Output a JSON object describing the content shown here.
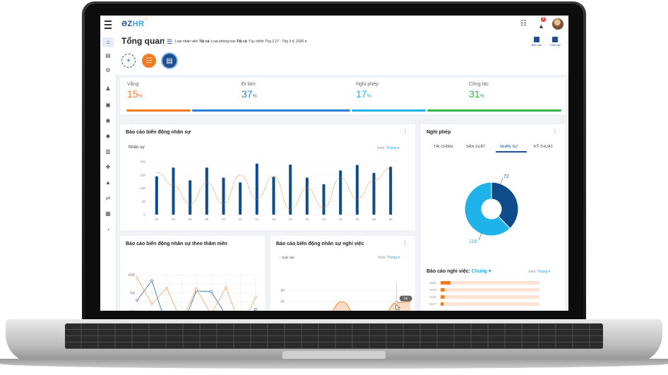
{
  "app": {
    "logo_main": "ƏZ",
    "logo_accent": "HR",
    "logo_spark": "⁘"
  },
  "header": {
    "title": "Tổng quan",
    "filter_prefix": "Loại nhân viên ",
    "filter_emp_value": "Tất cả",
    "filter_mid": " ;Loại phòng ban ",
    "filter_dept_value": "Tất cả",
    "filter_suffix": " ;Tùy chỉnh  Thg 2 27 - Thg 3 4, 2020",
    "report_label": "Báo cáo",
    "settings_label": "Thiết lập"
  },
  "topbar": {
    "notification_count": "5"
  },
  "stats": [
    {
      "label": "Vắng",
      "value": "15",
      "unit": "%",
      "color": "#f37b23"
    },
    {
      "label": "Đi làm",
      "value": "37",
      "unit": "%",
      "color": "#2f7fd6"
    },
    {
      "label": "Nghỉ phép",
      "value": "17",
      "unit": "%",
      "color": "#1fb3ea"
    },
    {
      "label": "Công tác",
      "value": "31",
      "unit": "%",
      "color": "#33b24a"
    }
  ],
  "hr_change": {
    "title": "Báo cáo biến động nhân sự",
    "subtitle": "Nhân sự",
    "view_prefix": "Xem:",
    "view_value": "Tháng",
    "chart_data": {
      "type": "bar",
      "categories": [
        "02",
        "04",
        "06",
        "08",
        "10",
        "12",
        "14",
        "16",
        "18",
        "20",
        "22",
        "24",
        "26",
        "28",
        "30"
      ],
      "values": [
        145,
        178,
        130,
        178,
        140,
        122,
        193,
        143,
        189,
        140,
        115,
        167,
        188,
        158,
        181
      ],
      "line_values": [
        160,
        110,
        40,
        120,
        40,
        150,
        60,
        145,
        20,
        100,
        25,
        140,
        60,
        130,
        175
      ],
      "ylim": [
        0,
        200
      ],
      "yticks": [
        "0",
        "50",
        "100",
        "150",
        "200"
      ],
      "bar_color": "#0f4c8c",
      "line_color": "#f37b23"
    }
  },
  "leave": {
    "title": "Nghỉ phép",
    "tabs": [
      "TÀI CHÍNH",
      "SẢN XUẤT",
      "NHÂN SỰ",
      "KỸ THUẬT"
    ],
    "active_tab": 2,
    "chart_data": {
      "type": "pie",
      "labels": [
        "72",
        "118"
      ],
      "values": [
        72,
        118
      ],
      "colors": [
        "#0f4c8c",
        "#1fb3ea"
      ]
    }
  },
  "leave_report": {
    "title_prefix": "Báo cáo nghỉ việc: ",
    "title_value": "Chung",
    "view_prefix": "Xem:",
    "view_value": "Tháng",
    "chart_data": {
      "type": "bar",
      "categories": [
        "2020",
        "2019",
        "2018",
        "2017"
      ],
      "values": [
        10,
        4,
        4,
        3
      ],
      "max": 100
    }
  },
  "seniority": {
    "title": "Báo cáo biến động nhân sự theo thâm niên",
    "chart_data": {
      "type": "line",
      "ylabels": [
        "1000",
        "750",
        "500"
      ],
      "ylim": [
        250,
        1000
      ],
      "series": [
        {
          "values": [
            650,
            920,
            300,
            270,
            780,
            770,
            450,
            310,
            530
          ],
          "color": "#2a62b8"
        },
        {
          "values": [
            960,
            600,
            820,
            370,
            810,
            460,
            830,
            280,
            690
          ],
          "color": "#f5a05a"
        }
      ]
    }
  },
  "resign": {
    "title": "Báo cáo biến động nhân sự nghỉ việc",
    "legend": "Nghỉ việc",
    "view_prefix": "Xem:",
    "view_value": "Tháng",
    "tooltip": "58",
    "chart_data": {
      "type": "area",
      "yticks": [
        "80",
        "60",
        "40"
      ],
      "ylim": [
        25,
        90
      ],
      "values": [
        30,
        32,
        33,
        40,
        60,
        38,
        29,
        36,
        58,
        60
      ]
    }
  }
}
